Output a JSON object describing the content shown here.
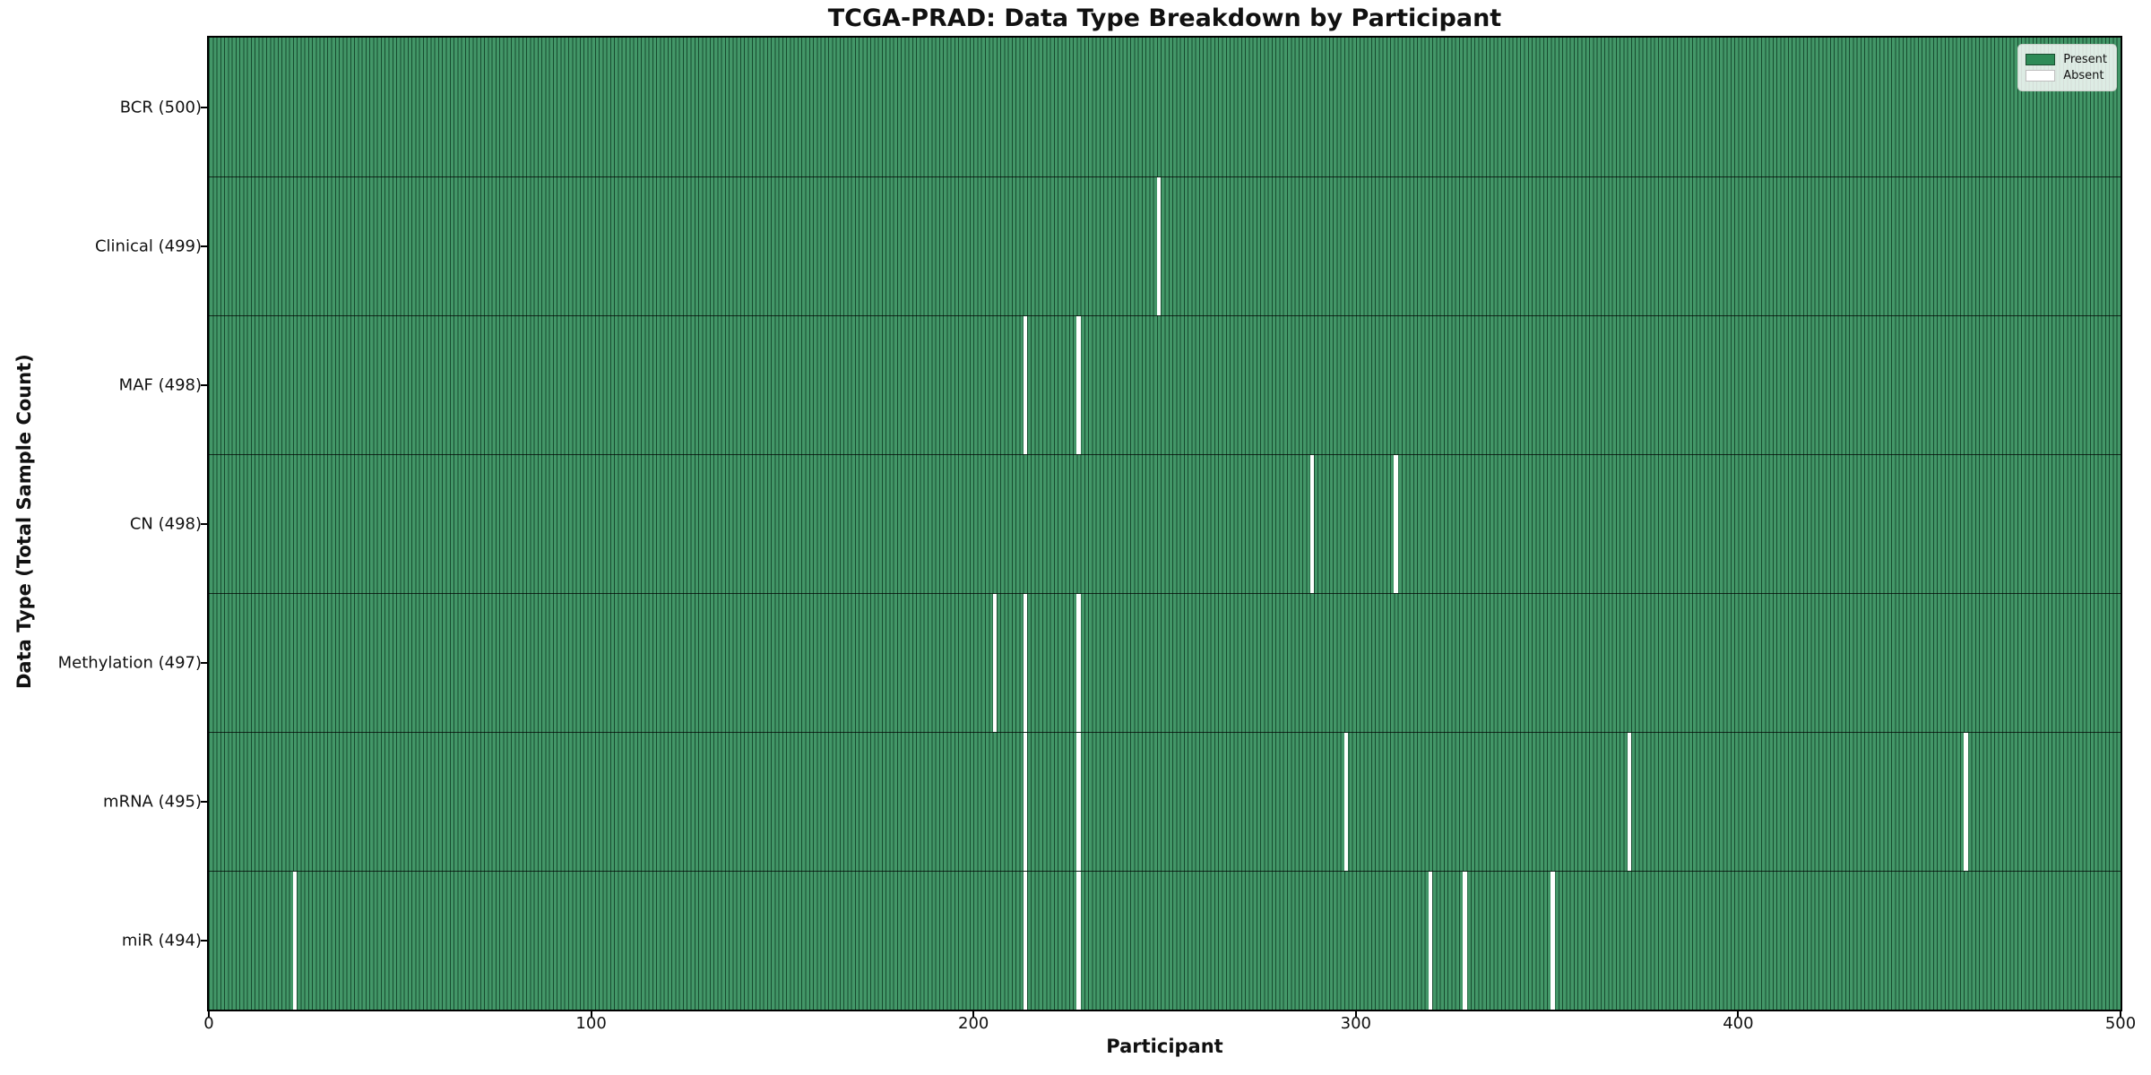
{
  "chart_data": {
    "type": "heatmap",
    "title": "TCGA-PRAD: Data Type Breakdown by Participant",
    "xlabel": "Participant",
    "ylabel": "Data Type (Total Sample Count)",
    "x_range": [
      0,
      500
    ],
    "x_ticks": [
      "0",
      "100",
      "200",
      "300",
      "400",
      "500"
    ],
    "n_participants": 500,
    "grid": false,
    "legend": {
      "position": "upper right",
      "entries": [
        {
          "label": "Present",
          "color": "#2e8b57"
        },
        {
          "label": "Absent",
          "color": "#ffffff"
        }
      ]
    },
    "rows": [
      {
        "data_type": "BCR",
        "label": "BCR (500)",
        "total": 500,
        "absent_participants": []
      },
      {
        "data_type": "Clinical",
        "label": "Clinical (499)",
        "total": 499,
        "absent_participants": [
          248
        ]
      },
      {
        "data_type": "MAF",
        "label": "MAF (498)",
        "total": 498,
        "absent_participants": [
          213,
          227
        ]
      },
      {
        "data_type": "CN",
        "label": "CN (498)",
        "total": 498,
        "absent_participants": [
          288,
          310
        ]
      },
      {
        "data_type": "Methylation",
        "label": "Methylation (497)",
        "total": 497,
        "absent_participants": [
          205,
          213,
          227
        ]
      },
      {
        "data_type": "mRNA",
        "label": "mRNA (495)",
        "total": 495,
        "absent_participants": [
          213,
          227,
          297,
          371,
          459
        ]
      },
      {
        "data_type": "miR",
        "label": "miR (494)",
        "total": 494,
        "absent_participants": [
          22,
          213,
          227,
          319,
          328,
          351
        ]
      }
    ],
    "colors": {
      "present": "#2e8b57",
      "absent": "#ffffff",
      "plot_border": "#000000",
      "text": "#111111",
      "figure_background": "#ffffff"
    }
  }
}
